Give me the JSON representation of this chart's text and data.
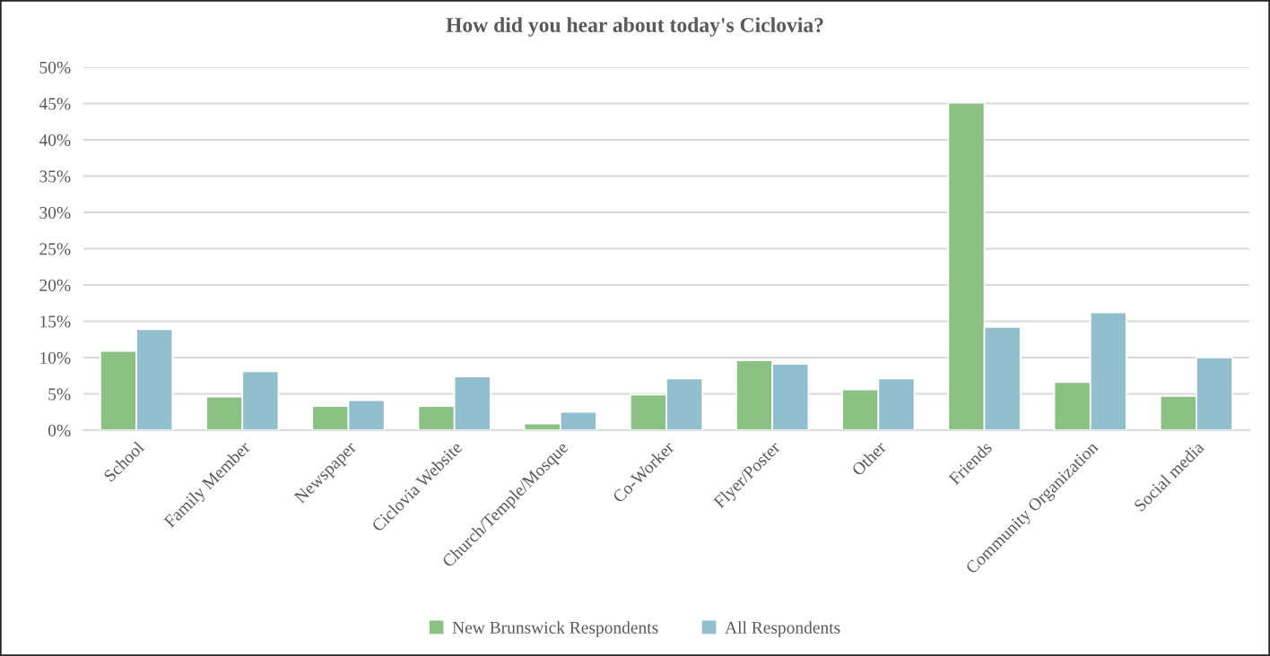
{
  "chart_data": {
    "type": "bar",
    "title": "How did you hear about today's Ciclovia?",
    "categories": [
      "School",
      "Family Member",
      "Newspaper",
      "Ciclovia Website",
      "Church/Temple/Mosque",
      "Co-Worker",
      "Flyer/Poster",
      "Other",
      "Friends",
      "Community Organization",
      "Social media"
    ],
    "series": [
      {
        "name": "New Brunswick Respondents",
        "color": "#8bc283",
        "values": [
          10.9,
          4.6,
          3.3,
          3.3,
          0.9,
          4.9,
          9.6,
          5.6,
          45.1,
          6.6,
          4.7
        ]
      },
      {
        "name": "All Respondents",
        "color": "#92bfcd",
        "values": [
          13.9,
          8.1,
          4.1,
          7.4,
          2.5,
          7.1,
          9.1,
          7.1,
          14.2,
          16.2,
          10.0
        ]
      }
    ],
    "ylim": [
      0,
      50
    ],
    "yticks": [
      {
        "value": 0,
        "label": "0%"
      },
      {
        "value": 5,
        "label": "5%"
      },
      {
        "value": 10,
        "label": "10%"
      },
      {
        "value": 15,
        "label": "15%"
      },
      {
        "value": 20,
        "label": "20%"
      },
      {
        "value": 25,
        "label": "25%"
      },
      {
        "value": 30,
        "label": "30%"
      },
      {
        "value": 35,
        "label": "35%"
      },
      {
        "value": 40,
        "label": "40%"
      },
      {
        "value": 45,
        "label": "45%"
      },
      {
        "value": 50,
        "label": "50%"
      }
    ],
    "grid": "y",
    "legend": "bottom"
  }
}
